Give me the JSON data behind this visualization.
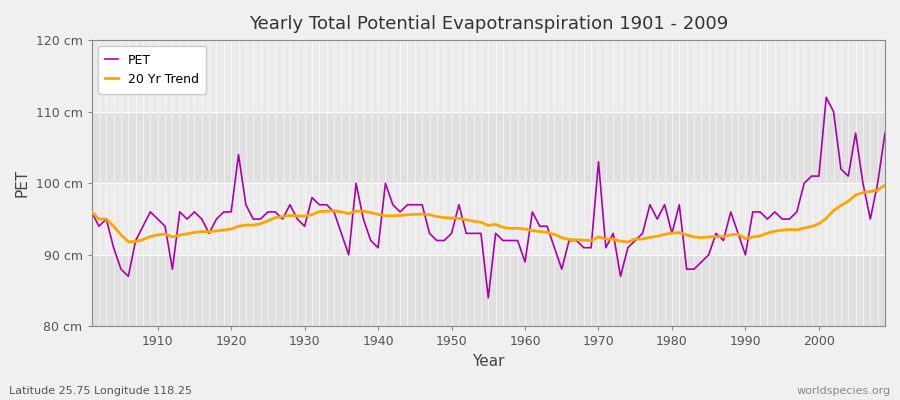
{
  "title": "Yearly Total Potential Evapotranspiration 1901 - 2009",
  "xlabel": "Year",
  "ylabel": "PET",
  "subtitle": "Latitude 25.75 Longitude 118.25",
  "watermark": "worldspecies.org",
  "ylim": [
    80,
    120
  ],
  "yticks": [
    80,
    90,
    100,
    110,
    120
  ],
  "ytick_labels": [
    "80 cm",
    "90 cm",
    "100 cm",
    "110 cm",
    "120 cm"
  ],
  "years": [
    1901,
    1902,
    1903,
    1904,
    1905,
    1906,
    1907,
    1908,
    1909,
    1910,
    1911,
    1912,
    1913,
    1914,
    1915,
    1916,
    1917,
    1918,
    1919,
    1920,
    1921,
    1922,
    1923,
    1924,
    1925,
    1926,
    1927,
    1928,
    1929,
    1930,
    1931,
    1932,
    1933,
    1934,
    1935,
    1936,
    1937,
    1938,
    1939,
    1940,
    1941,
    1942,
    1943,
    1944,
    1945,
    1946,
    1947,
    1948,
    1949,
    1950,
    1951,
    1952,
    1953,
    1954,
    1955,
    1956,
    1957,
    1958,
    1959,
    1960,
    1961,
    1962,
    1963,
    1964,
    1965,
    1966,
    1967,
    1968,
    1969,
    1970,
    1971,
    1972,
    1973,
    1974,
    1975,
    1976,
    1977,
    1978,
    1979,
    1980,
    1981,
    1982,
    1983,
    1984,
    1985,
    1986,
    1987,
    1988,
    1989,
    1990,
    1991,
    1992,
    1993,
    1994,
    1995,
    1996,
    1997,
    1998,
    1999,
    2000,
    2001,
    2002,
    2003,
    2004,
    2005,
    2006,
    2007,
    2008,
    2009
  ],
  "pet": [
    96,
    94,
    95,
    91,
    88,
    87,
    92,
    94,
    96,
    95,
    94,
    88,
    96,
    95,
    96,
    95,
    93,
    95,
    96,
    96,
    104,
    97,
    95,
    95,
    96,
    96,
    95,
    97,
    95,
    94,
    98,
    97,
    97,
    96,
    93,
    90,
    100,
    95,
    92,
    91,
    100,
    97,
    96,
    97,
    97,
    97,
    93,
    92,
    92,
    93,
    97,
    93,
    93,
    93,
    84,
    93,
    92,
    92,
    92,
    89,
    96,
    94,
    94,
    91,
    88,
    92,
    92,
    91,
    91,
    103,
    91,
    93,
    87,
    91,
    92,
    93,
    97,
    95,
    97,
    93,
    97,
    88,
    88,
    89,
    90,
    93,
    92,
    96,
    93,
    90,
    96,
    96,
    95,
    96,
    95,
    95,
    96,
    100,
    101,
    101,
    112,
    110,
    102,
    101,
    107,
    100,
    95,
    100,
    107
  ],
  "pet_color": "#AA00AA",
  "trend_color": "#FFA500",
  "figure_bg": "#F0F0F0",
  "plot_bg_light": "#F0F0F0",
  "plot_bg_dark": "#E0E0E0",
  "grid_color": "#FFFFFF",
  "trend_window": 20,
  "legend_pet": "PET",
  "legend_trend": "20 Yr Trend",
  "band_ranges": [
    [
      80,
      90
    ],
    [
      90,
      100
    ],
    [
      100,
      110
    ],
    [
      110,
      120
    ]
  ],
  "band_colors": [
    "#E0E0E0",
    "#EBEBEB",
    "#E0E0E0",
    "#EBEBEB"
  ]
}
